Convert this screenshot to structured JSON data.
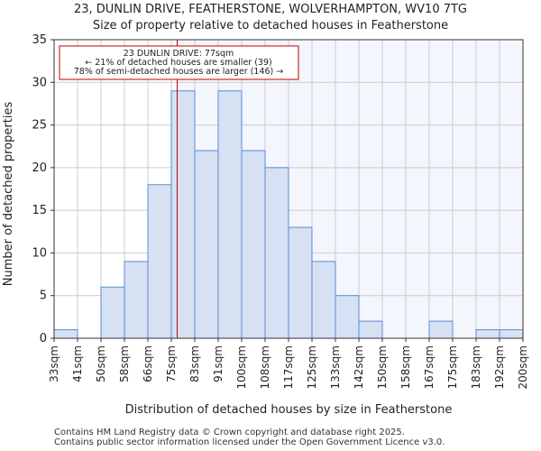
{
  "chart_data": {
    "type": "bar",
    "title": "23, DUNLIN DRIVE, FEATHERSTONE, WOLVERHAMPTON, WV10 7TG",
    "subtitle": "Size of property relative to detached houses in Featherstone",
    "xlabel": "Distribution of detached houses by size in Featherstone",
    "ylabel": "Number of detached properties",
    "x_ticks": [
      "33sqm",
      "41sqm",
      "50sqm",
      "58sqm",
      "66sqm",
      "75sqm",
      "83sqm",
      "91sqm",
      "100sqm",
      "108sqm",
      "117sqm",
      "125sqm",
      "133sqm",
      "142sqm",
      "150sqm",
      "158sqm",
      "167sqm",
      "175sqm",
      "183sqm",
      "192sqm",
      "200sqm"
    ],
    "values": [
      1,
      0,
      6,
      9,
      18,
      29,
      22,
      29,
      22,
      20,
      13,
      9,
      5,
      2,
      0,
      0,
      2,
      0,
      1,
      1
    ],
    "y_ticks": [
      0,
      5,
      10,
      15,
      20,
      25,
      30,
      35
    ],
    "ylim": [
      0,
      35
    ],
    "grid": true,
    "marker_sqm": 77,
    "marker_bin_fraction": 0.25,
    "annotation": [
      "23 DUNLIN DRIVE: 77sqm",
      "← 21% of detached houses are smaller (39)",
      "78% of semi-detached houses are larger (146) →"
    ],
    "colors": {
      "bar_fill": "#d6e1f3",
      "bar_edge": "#5b8bd6",
      "marker": "#c00000",
      "shade": "#f3f6fd",
      "grid": "#cccccc"
    }
  },
  "footer": [
    "Contains HM Land Registry data © Crown copyright and database right 2025.",
    "Contains public sector information licensed under the Open Government Licence v3.0."
  ]
}
